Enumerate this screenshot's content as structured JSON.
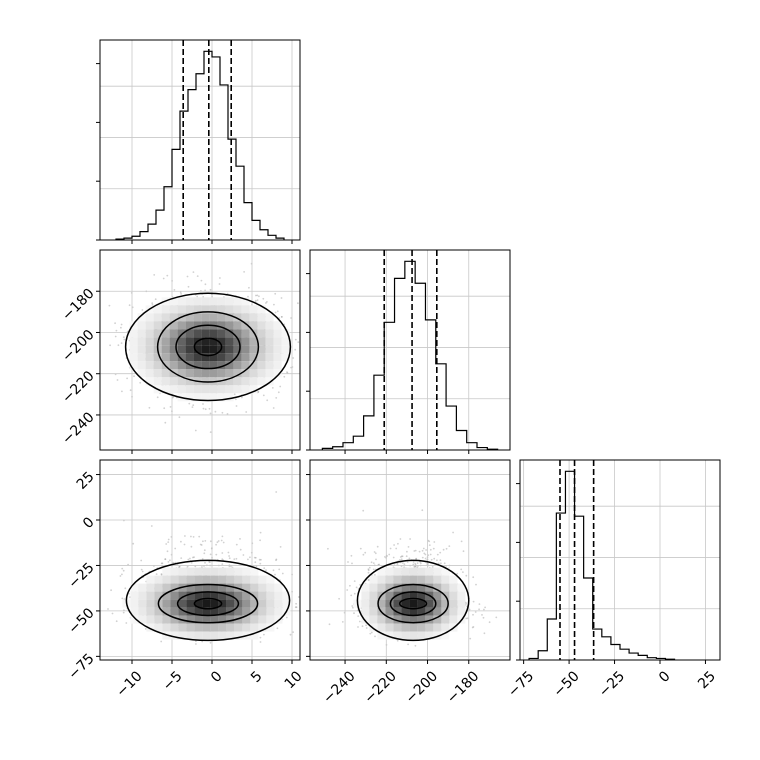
{
  "chart_data": {
    "type": "corner",
    "parameters": [
      {
        "name": "",
        "range": [
          -14,
          11
        ],
        "ticks": [
          "-10",
          "-5",
          "0",
          "5",
          "10"
        ],
        "tick_values": [
          -10,
          -5,
          0,
          5,
          10
        ],
        "quantiles": [
          -3.6,
          -0.4,
          2.4
        ]
      },
      {
        "name": "",
        "range": [
          -257,
          -160
        ],
        "ticks": [
          "-180",
          "-200",
          "-220",
          "-240"
        ],
        "tick_values": [
          -180,
          -200,
          -220,
          -240
        ],
        "quantiles": [
          -221,
          -207.5,
          -195.5
        ]
      },
      {
        "name": "",
        "range": [
          -77,
          33
        ],
        "ticks": [
          "25",
          "0",
          "-25",
          "-50",
          "-75"
        ],
        "tick_values": [
          25,
          0,
          -25,
          -50,
          -75
        ],
        "quantiles": [
          -55,
          -47,
          -36.5
        ]
      }
    ],
    "x_tick_labels": [
      [
        "-10",
        "-5",
        "0",
        "5",
        "10"
      ],
      [
        "-240",
        "-220",
        "-200",
        "-180"
      ],
      [
        "-75",
        "-50",
        "-25",
        "0",
        "25"
      ]
    ],
    "y_tick_labels": [
      [
        "-180",
        "-200",
        "-220",
        "-240"
      ],
      [
        "25",
        "0",
        "-25",
        "-50",
        "-75"
      ]
    ],
    "histograms": [
      {
        "param": 0,
        "bin_edges": [
          -12,
          -11,
          -10,
          -9,
          -8,
          -7,
          -6,
          -5,
          -4,
          -3,
          -2,
          -1,
          0,
          1,
          2,
          3,
          4,
          5,
          6,
          7,
          8,
          9
        ],
        "counts": [
          1,
          2,
          4,
          9,
          17,
          32,
          57,
          97,
          138,
          161,
          178,
          202,
          196,
          166,
          108,
          79,
          40,
          21,
          11,
          5,
          2
        ]
      },
      {
        "param": 1,
        "bin_edges": [
          -251,
          -246,
          -241,
          -236,
          -231,
          -226,
          -221,
          -216,
          -211,
          -206,
          -201,
          -196,
          -191,
          -186,
          -181,
          -176,
          -171,
          -166
        ],
        "counts": [
          2,
          4,
          9,
          17,
          42,
          92,
          157,
          211,
          232,
          205,
          160,
          106,
          54,
          24,
          9,
          3,
          1
        ]
      },
      {
        "param": 2,
        "bin_edges": [
          -72,
          -67,
          -62,
          -57,
          -52,
          -47,
          -42,
          -37,
          -32,
          -27,
          -22,
          -17,
          -12,
          -7,
          -2,
          3,
          8
        ],
        "counts": [
          2,
          12,
          53,
          190,
          244,
          186,
          106,
          40,
          30,
          20,
          14,
          9,
          6,
          3,
          2,
          1
        ]
      }
    ],
    "joint_2d": [
      {
        "x_param": 0,
        "y_param": 1,
        "center": [
          -0.5,
          -207
        ],
        "contour_radii": [
          [
            1.7,
            4.2
          ],
          [
            4,
            10.5
          ],
          [
            6.3,
            17
          ],
          [
            10.3,
            26
          ]
        ]
      },
      {
        "x_param": 0,
        "y_param": 2,
        "center": [
          -0.5,
          -46
        ],
        "contour_radii": [
          [
            1.7,
            2.8
          ],
          [
            3.8,
            6.5
          ],
          [
            6.2,
            10.5
          ],
          [
            10.2,
            22
          ]
        ]
      },
      {
        "x_param": 1,
        "y_param": 2,
        "center": [
          -207,
          -46
        ],
        "contour_radii": [
          [
            6.5,
            2.8
          ],
          [
            11,
            6.5
          ],
          [
            17,
            10.5
          ],
          [
            27,
            22
          ]
        ]
      }
    ],
    "grid": true,
    "legend": "none"
  }
}
